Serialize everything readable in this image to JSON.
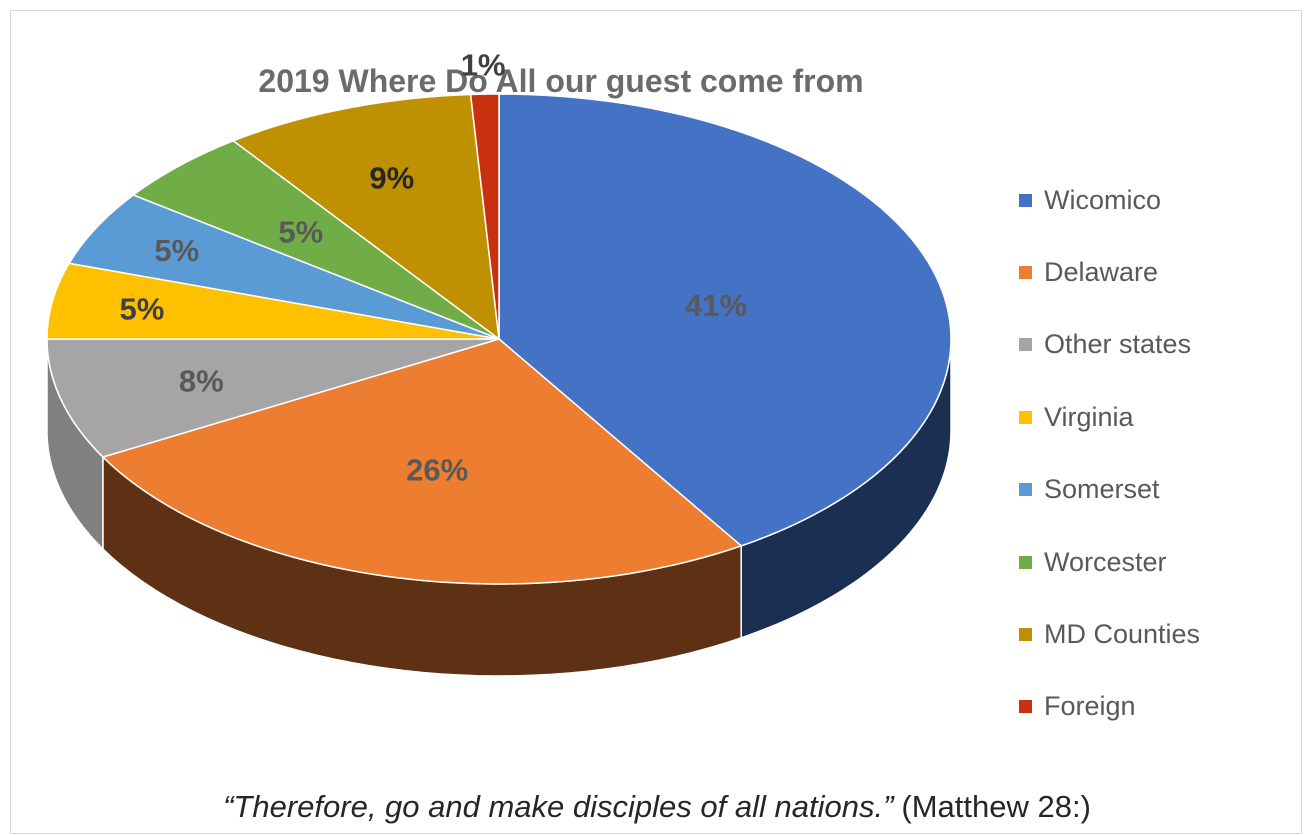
{
  "chart_data": {
    "type": "pie",
    "title": "2019 Where Do All our guest come from",
    "categories": [
      "Wicomico",
      "Delaware",
      "Other states",
      "Virginia",
      "Somerset",
      "Worcester",
      "MD Counties",
      "Foreign"
    ],
    "values": [
      41,
      26,
      8,
      5,
      5,
      5,
      9,
      1
    ],
    "data_labels": [
      "41%",
      "26%",
      "8%",
      "5%",
      "5%",
      "5%",
      "9%",
      "1%"
    ],
    "label_colors": [
      "#595959",
      "#595959",
      "#595959",
      "#404040",
      "#595959",
      "#595959",
      "#262626",
      "#404040"
    ],
    "colors": [
      "#4472C4",
      "#ED7D31",
      "#A5A5A5",
      "#FFC000",
      "#5B9BD5",
      "#70AD47",
      "#BF9000",
      "#C9300F"
    ],
    "side_colors": [
      "#1B2F52",
      "#5E3014",
      "#808080",
      "#B38600",
      "#3D6F9E",
      "#4C7A30",
      "#8A6700",
      "#8A2009"
    ],
    "legend_position": "right",
    "style": "3d"
  },
  "caption": {
    "verse": "Therefore, go and make disciples of all nations.",
    "open_quote": "“",
    "close_quote": "”",
    "reference": "(Matthew 28:)"
  }
}
